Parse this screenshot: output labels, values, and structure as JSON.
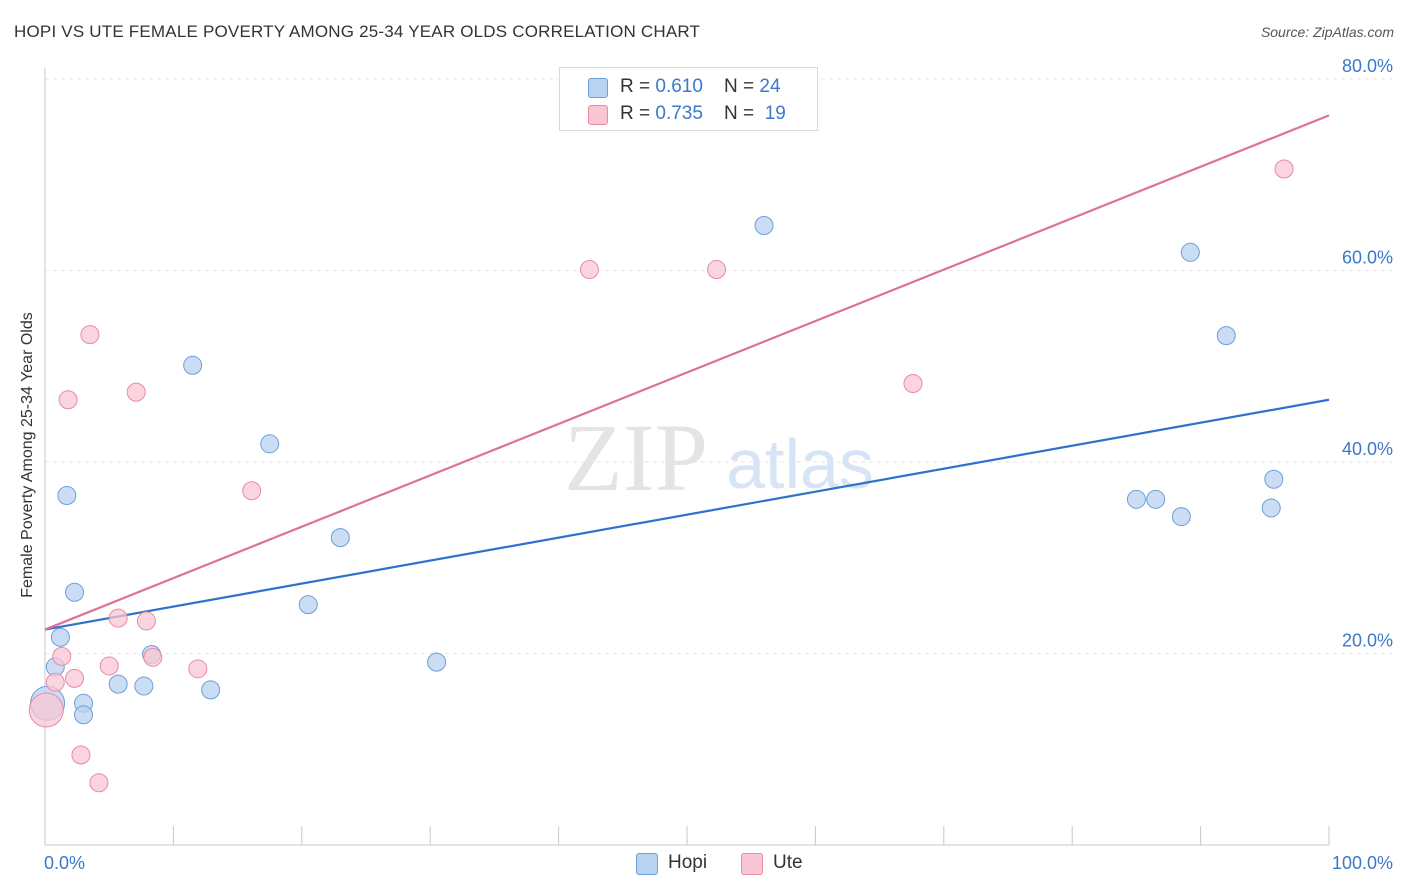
{
  "title": "HOPI VS UTE FEMALE POVERTY AMONG 25-34 YEAR OLDS CORRELATION CHART",
  "source": "Source: ZipAtlas.com",
  "watermark": {
    "zip": "ZIP",
    "atlas": "atlas"
  },
  "colors": {
    "hopi_fill": "#b8d2f2",
    "hopi_stroke": "#6d9fd8",
    "hopi_line": "#2f72cc",
    "ute_fill": "#f8c6d3",
    "ute_stroke": "#e98aa6",
    "ute_line": "#e07096",
    "axis_text": "#3a78c9",
    "grid": "#e6e6e6"
  },
  "legend": {
    "hopi": {
      "r_label": "R = ",
      "r_value": "0.610",
      "n_label": "N = ",
      "n_value": "24"
    },
    "ute": {
      "r_label": "R = ",
      "r_value": "0.735",
      "n_label": "N = ",
      "n_value": "19"
    }
  },
  "bottom_legend": {
    "hopi": "Hopi",
    "ute": "Ute"
  },
  "chart_data": {
    "type": "scatter",
    "title": "HOPI VS UTE FEMALE POVERTY AMONG 25-34 YEAR OLDS CORRELATION CHART",
    "xlabel": "",
    "ylabel": "Female Poverty Among 25-34 Year Olds",
    "xlim": [
      0,
      100
    ],
    "ylim": [
      0,
      80
    ],
    "x_tick_labels": [
      "0.0%",
      "100.0%"
    ],
    "y_ticks": [
      20,
      40,
      60,
      80
    ],
    "y_tick_labels": [
      "20.0%",
      "40.0%",
      "60.0%",
      "80.0%"
    ],
    "series": [
      {
        "name": "Hopi",
        "color": "#6d9fd8",
        "points": [
          [
            0.2,
            14.8
          ],
          [
            0.8,
            18.6
          ],
          [
            1.2,
            21.7
          ],
          [
            1.7,
            36.5
          ],
          [
            2.3,
            26.4
          ],
          [
            3.0,
            14.8
          ],
          [
            3.0,
            13.6
          ],
          [
            5.7,
            16.8
          ],
          [
            7.7,
            16.6
          ],
          [
            8.3,
            19.9
          ],
          [
            11.5,
            50.1
          ],
          [
            12.9,
            16.2
          ],
          [
            17.5,
            41.9
          ],
          [
            20.5,
            25.1
          ],
          [
            23.0,
            32.1
          ],
          [
            30.5,
            19.1
          ],
          [
            56.0,
            64.7
          ],
          [
            85.0,
            36.1
          ],
          [
            86.5,
            36.1
          ],
          [
            88.5,
            34.3
          ],
          [
            89.2,
            61.9
          ],
          [
            92.0,
            53.2
          ],
          [
            95.5,
            35.2
          ],
          [
            95.7,
            38.2
          ]
        ],
        "trend": {
          "x": [
            0,
            100
          ],
          "y": [
            22.5,
            46.5
          ]
        }
      },
      {
        "name": "Ute",
        "color": "#e98aa6",
        "points": [
          [
            0.1,
            14.1
          ],
          [
            0.8,
            17.0
          ],
          [
            1.3,
            19.7
          ],
          [
            1.8,
            46.5
          ],
          [
            2.3,
            17.4
          ],
          [
            2.8,
            9.4
          ],
          [
            3.5,
            53.3
          ],
          [
            4.2,
            6.5
          ],
          [
            5.0,
            18.7
          ],
          [
            5.7,
            23.7
          ],
          [
            7.1,
            47.3
          ],
          [
            7.9,
            23.4
          ],
          [
            8.4,
            19.6
          ],
          [
            11.9,
            18.4
          ],
          [
            16.1,
            37.0
          ],
          [
            42.4,
            60.1
          ],
          [
            52.3,
            60.1
          ],
          [
            67.6,
            48.2
          ],
          [
            96.5,
            70.6
          ]
        ],
        "trend": {
          "x": [
            0,
            100
          ],
          "y": [
            22.5,
            76.2
          ]
        }
      }
    ]
  }
}
